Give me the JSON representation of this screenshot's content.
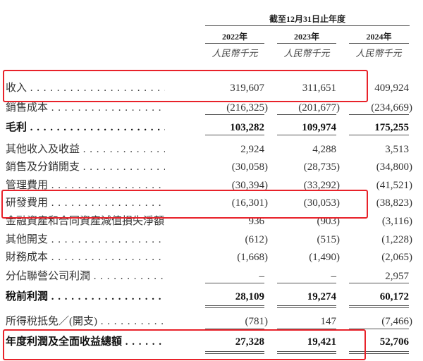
{
  "header": {
    "period": "截至12月31日止年度",
    "years": [
      "2022年",
      "2023年",
      "2024年"
    ],
    "unit": "人民幣千元"
  },
  "rows": [
    {
      "label": "收入",
      "values": [
        "319,607",
        "311,651",
        "409,924"
      ],
      "bold": false,
      "highlight": true
    },
    {
      "label": "銷售成本",
      "values": [
        "(216,325)",
        "(201,677)",
        "(234,669)"
      ]
    },
    {
      "label": "毛利",
      "values": [
        "103,282",
        "109,974",
        "175,255"
      ],
      "bold": true
    },
    {
      "label": "其他收入及收益",
      "values": [
        "2,924",
        "4,288",
        "3,513"
      ]
    },
    {
      "label": "銷售及分銷開支",
      "values": [
        "(30,058)",
        "(28,735)",
        "(34,800)"
      ]
    },
    {
      "label": "管理費用",
      "values": [
        "(30,394)",
        "(33,292)",
        "(41,521)"
      ]
    },
    {
      "label": "研發費用",
      "values": [
        "(16,301)",
        "(30,053)",
        "(38,823)"
      ],
      "highlight": true
    },
    {
      "label": "金融資產和合同資產減值損失淨額",
      "values": [
        "936",
        "(903)",
        "(3,116)"
      ]
    },
    {
      "label": "其他開支",
      "values": [
        "(612)",
        "(515)",
        "(1,228)"
      ]
    },
    {
      "label": "財務成本",
      "values": [
        "(1,668)",
        "(1,490)",
        "(2,065)"
      ]
    },
    {
      "label": "分佔聯營公司利潤",
      "values": [
        "–",
        "–",
        "2,957"
      ]
    },
    {
      "label": "稅前利潤",
      "values": [
        "28,109",
        "19,274",
        "60,172"
      ],
      "bold": true
    },
    {
      "label": "所得稅抵免／(開支)",
      "values": [
        "(781)",
        "147",
        "(7,466)"
      ]
    },
    {
      "label": "年度利潤及全面收益總額",
      "values": [
        "27,328",
        "19,421",
        "52,706"
      ],
      "bold": true,
      "highlight": true
    }
  ],
  "highlight_color": "#e8222a"
}
